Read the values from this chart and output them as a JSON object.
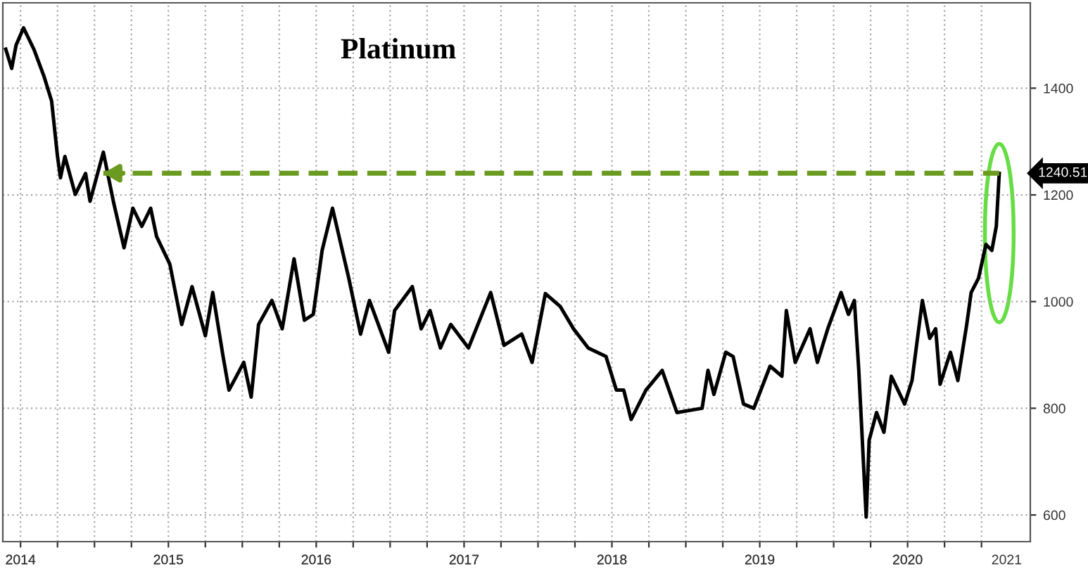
{
  "chart_data": {
    "type": "line",
    "title": "Platinum",
    "x": [
      2014.4,
      2014.44,
      2014.47,
      2014.52,
      2014.59,
      2014.66,
      2014.71,
      2014.75,
      2014.77,
      2014.8,
      2014.87,
      2014.94,
      2014.97,
      2015.06,
      2015.13,
      2015.2,
      2015.26,
      2015.32,
      2015.38,
      2015.42,
      2015.51,
      2015.59,
      2015.66,
      2015.75,
      2015.8,
      2015.87,
      2015.91,
      2016.01,
      2016.06,
      2016.11,
      2016.2,
      2016.27,
      2016.35,
      2016.42,
      2016.48,
      2016.54,
      2016.61,
      2016.72,
      2016.8,
      2016.86,
      2016.99,
      2017.03,
      2017.15,
      2017.21,
      2017.27,
      2017.34,
      2017.41,
      2017.53,
      2017.68,
      2017.77,
      2017.89,
      2017.96,
      2018.05,
      2018.15,
      2018.24,
      2018.34,
      2018.46,
      2018.53,
      2018.58,
      2018.63,
      2018.73,
      2018.84,
      2018.94,
      2019.11,
      2019.15,
      2019.19,
      2019.27,
      2019.32,
      2019.39,
      2019.46,
      2019.57,
      2019.65,
      2019.68,
      2019.74,
      2019.84,
      2019.89,
      2019.96,
      2020.05,
      2020.1,
      2020.14,
      2020.17,
      2020.22,
      2020.24,
      2020.29,
      2020.34,
      2020.39,
      2020.48,
      2020.53,
      2020.6,
      2020.65,
      2020.69,
      2020.72,
      2020.79,
      2020.84,
      2020.9,
      2020.93,
      2020.98,
      2021.03,
      2021.07,
      2021.1,
      2021.12
    ],
    "series": [
      {
        "color": "#000000",
        "values": [
          1473,
          1437,
          1481,
          1513,
          1473,
          1421,
          1376,
          1272,
          1232,
          1272,
          1201,
          1240,
          1188,
          1280,
          1185,
          1101,
          1175,
          1141,
          1175,
          1122,
          1070,
          957,
          1028,
          936,
          1017,
          897,
          834,
          886,
          821,
          957,
          1002,
          949,
          1080,
          965,
          976,
          1096,
          1175,
          1044,
          939,
          1002,
          905,
          983,
          1028,
          949,
          983,
          913,
          957,
          913,
          1017,
          918,
          939,
          886,
          1015,
          991,
          949,
          913,
          897,
          834,
          834,
          779,
          834,
          871,
          792,
          800,
          871,
          826,
          905,
          897,
          808,
          800,
          879,
          860,
          983,
          886,
          949,
          886,
          949,
          1017,
          976,
          1002,
          871,
          596,
          740,
          792,
          755,
          860,
          808,
          852,
          1002,
          931,
          949,
          845,
          905,
          852,
          957,
          1017,
          1044,
          1107,
          1096,
          1141,
          1240
        ]
      }
    ],
    "xlim": [
      2014.38,
      2021.33
    ],
    "ylim": [
      550,
      1560
    ],
    "xticks": [
      {
        "value": 2014.5,
        "label": null
      },
      {
        "value": 2014.75,
        "label": null
      },
      {
        "value": 2015.0,
        "label": null
      },
      {
        "value": 2015.25,
        "label": null
      },
      {
        "value": 2015.5,
        "label": null
      },
      {
        "value": 2015.75,
        "label": null
      },
      {
        "value": 2016.0,
        "label": null
      },
      {
        "value": 2016.25,
        "label": null
      },
      {
        "value": 2016.5,
        "label": null
      },
      {
        "value": 2016.75,
        "label": null
      },
      {
        "value": 2017.0,
        "label": null
      },
      {
        "value": 2017.25,
        "label": null
      },
      {
        "value": 2017.5,
        "label": null
      },
      {
        "value": 2017.75,
        "label": null
      },
      {
        "value": 2018.0,
        "label": null
      },
      {
        "value": 2018.25,
        "label": null
      },
      {
        "value": 2018.5,
        "label": null
      },
      {
        "value": 2018.75,
        "label": null
      },
      {
        "value": 2019.0,
        "label": null
      },
      {
        "value": 2019.25,
        "label": null
      },
      {
        "value": 2019.5,
        "label": null
      },
      {
        "value": 2019.75,
        "label": null
      },
      {
        "value": 2020.0,
        "label": null
      },
      {
        "value": 2020.25,
        "label": null
      },
      {
        "value": 2020.5,
        "label": null
      },
      {
        "value": 2020.75,
        "label": null
      },
      {
        "value": 2021.0,
        "label": null
      },
      {
        "value": 2014.5,
        "label": "2014"
      },
      {
        "value": 2015.5,
        "label": "2015"
      },
      {
        "value": 2016.5,
        "label": "2016"
      },
      {
        "value": 2017.5,
        "label": "2017"
      },
      {
        "value": 2018.5,
        "label": "2018"
      },
      {
        "value": 2019.5,
        "label": "2019"
      },
      {
        "value": 2020.5,
        "label": "2020"
      },
      {
        "value": 2021.17,
        "label": "2021"
      }
    ],
    "yticks": [
      600,
      800,
      1000,
      1200,
      1400
    ],
    "ref_lines": [
      {
        "axis": "y",
        "value": 1240.51,
        "label": "1240.51",
        "color": "#6a9a1f",
        "line_style": "dashed"
      }
    ],
    "grid": true,
    "marker": "none",
    "line_style": "solid"
  }
}
